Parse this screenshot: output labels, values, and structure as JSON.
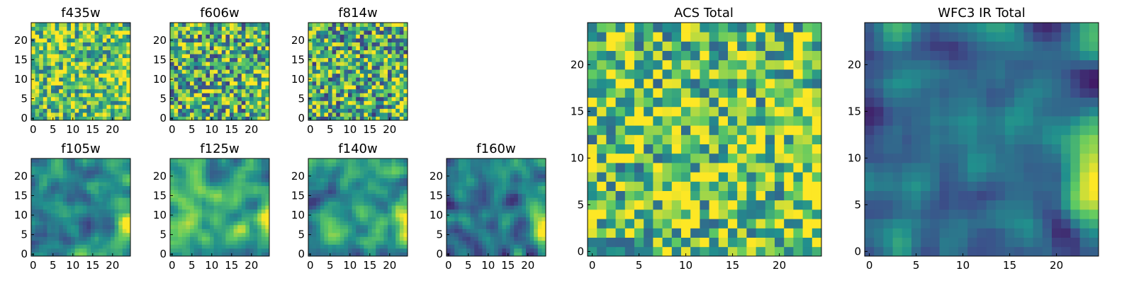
{
  "chart_data": [
    {
      "type": "heatmap",
      "title": "f435w",
      "grid": "25x25",
      "xlim": [
        0,
        24
      ],
      "ylim": [
        0,
        24
      ],
      "xticks": [
        "0",
        "5",
        "10",
        "15",
        "20"
      ],
      "yticks": [
        "0",
        "5",
        "10",
        "15",
        "20"
      ],
      "pattern": "noise",
      "mean": 0.72,
      "spread": 0.38,
      "seed": 11
    },
    {
      "type": "heatmap",
      "title": "f606w",
      "grid": "25x25",
      "xlim": [
        0,
        24
      ],
      "ylim": [
        0,
        24
      ],
      "xticks": [
        "0",
        "5",
        "10",
        "15",
        "20"
      ],
      "yticks": [
        "0",
        "5",
        "10",
        "15",
        "20"
      ],
      "pattern": "noise",
      "mean": 0.64,
      "spread": 0.45,
      "seed": 23
    },
    {
      "type": "heatmap",
      "title": "f814w",
      "grid": "25x25",
      "xlim": [
        0,
        24
      ],
      "ylim": [
        0,
        24
      ],
      "xticks": [
        "0",
        "5",
        "10",
        "15",
        "20"
      ],
      "yticks": [
        "0",
        "5",
        "10",
        "15",
        "20"
      ],
      "pattern": "noise",
      "mean": 0.62,
      "spread": 0.45,
      "seed": 37
    },
    {
      "type": "heatmap",
      "title": "f105w",
      "grid": "25x25",
      "xlim": [
        0,
        24
      ],
      "ylim": [
        0,
        24
      ],
      "xticks": [
        "0",
        "5",
        "10",
        "15",
        "20"
      ],
      "yticks": [
        "0",
        "5",
        "10",
        "15",
        "20"
      ],
      "pattern": "smooth",
      "mean": 0.5,
      "spread": 0.3,
      "seed": 41
    },
    {
      "type": "heatmap",
      "title": "f125w",
      "grid": "25x25",
      "xlim": [
        0,
        24
      ],
      "ylim": [
        0,
        24
      ],
      "xticks": [
        "0",
        "5",
        "10",
        "15",
        "20"
      ],
      "yticks": [
        "0",
        "5",
        "10",
        "15",
        "20"
      ],
      "pattern": "smooth",
      "mean": 0.6,
      "spread": 0.32,
      "seed": 53
    },
    {
      "type": "heatmap",
      "title": "f140w",
      "grid": "25x25",
      "xlim": [
        0,
        24
      ],
      "ylim": [
        0,
        24
      ],
      "xticks": [
        "0",
        "5",
        "10",
        "15",
        "20"
      ],
      "yticks": [
        "0",
        "5",
        "10",
        "15",
        "20"
      ],
      "pattern": "smooth",
      "mean": 0.5,
      "spread": 0.32,
      "seed": 67
    },
    {
      "type": "heatmap",
      "title": "f160w",
      "grid": "25x25",
      "xlim": [
        0,
        24
      ],
      "ylim": [
        0,
        24
      ],
      "xticks": [
        "0",
        "5",
        "10",
        "15",
        "20"
      ],
      "yticks": [
        "0",
        "5",
        "10",
        "15",
        "20"
      ],
      "pattern": "smooth",
      "mean": 0.4,
      "spread": 0.3,
      "seed": 79
    },
    {
      "type": "heatmap",
      "title": "ACS Total",
      "grid": "25x25",
      "xlim": [
        0,
        24
      ],
      "ylim": [
        0,
        24
      ],
      "xticks": [
        "0",
        "5",
        "10",
        "15",
        "20"
      ],
      "yticks": [
        "0",
        "5",
        "10",
        "15",
        "20"
      ],
      "pattern": "noise",
      "mean": 0.72,
      "spread": 0.4,
      "seed": 97
    },
    {
      "type": "heatmap",
      "title": "WFC3 IR Total",
      "grid": "25x25",
      "xlim": [
        0,
        24
      ],
      "ylim": [
        0,
        24
      ],
      "xticks": [
        "0",
        "5",
        "10",
        "15",
        "20"
      ],
      "yticks": [
        "0",
        "5",
        "10",
        "15",
        "20"
      ],
      "pattern": "smooth",
      "mean": 0.38,
      "spread": 0.3,
      "seed": 113
    }
  ],
  "colormap": [
    "#440154",
    "#3b528b",
    "#21908d",
    "#5dc963",
    "#fde725"
  ]
}
